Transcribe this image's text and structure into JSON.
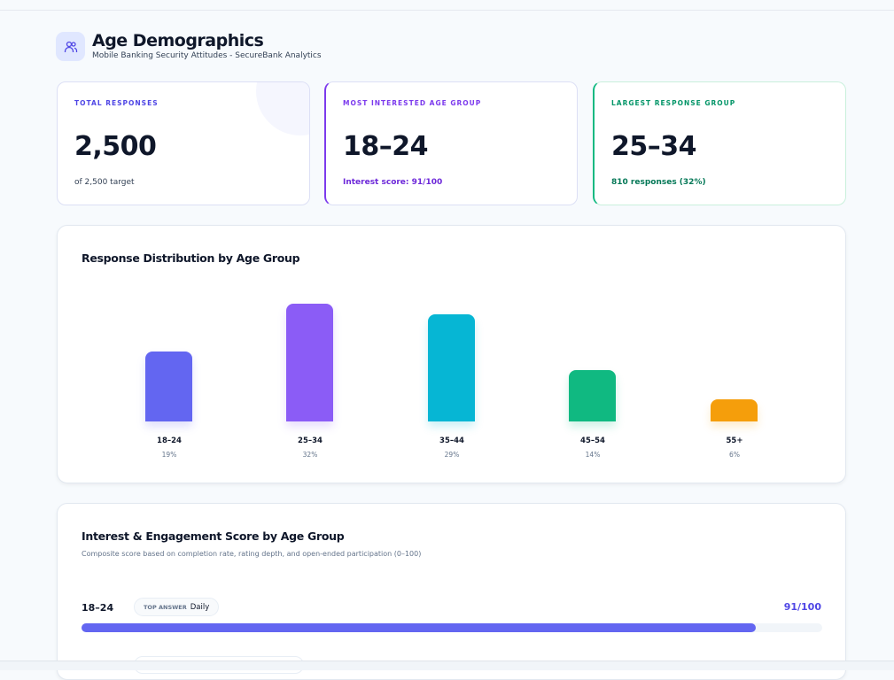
{
  "header": {
    "title": "Age Demographics",
    "subtitle": "Mobile Banking Security Attitudes - SecureBank Analytics",
    "icon": "users-icon"
  },
  "stats": [
    {
      "label": "TOTAL RESPONSES",
      "value": "2,500",
      "sub": "of 2,500 target",
      "color": "#4f46e5"
    },
    {
      "label": "MOST INTERESTED AGE GROUP",
      "value": "18–24",
      "sub": "Interest score: 91/100",
      "color": "#7c3aed"
    },
    {
      "label": "LARGEST RESPONSE GROUP",
      "value": "25–34",
      "sub": "810 responses (32%)",
      "color": "#059669"
    }
  ],
  "chart_data": {
    "type": "bar",
    "title": "Response Distribution by Age Group",
    "categories": [
      "18–24",
      "25–34",
      "35–44",
      "45–54",
      "55+"
    ],
    "values": [
      19,
      32,
      29,
      14,
      6
    ],
    "labels": [
      "19%",
      "32%",
      "29%",
      "14%",
      "6%"
    ],
    "colors": [
      "#6366f1",
      "#8b5cf6",
      "#06b6d4",
      "#10b981",
      "#f59e0b"
    ]
  },
  "engagement": {
    "title": "Interest & Engagement Score by Age Group",
    "subtitle": "Composite score based on completion rate, rating depth, and open-ended participation (0–100)",
    "rows": [
      {
        "group": "18–24",
        "top_label": "TOP ANSWER",
        "top_answer": "Daily",
        "score": "91/100",
        "value": 91,
        "color": "#6366f1"
      }
    ]
  }
}
